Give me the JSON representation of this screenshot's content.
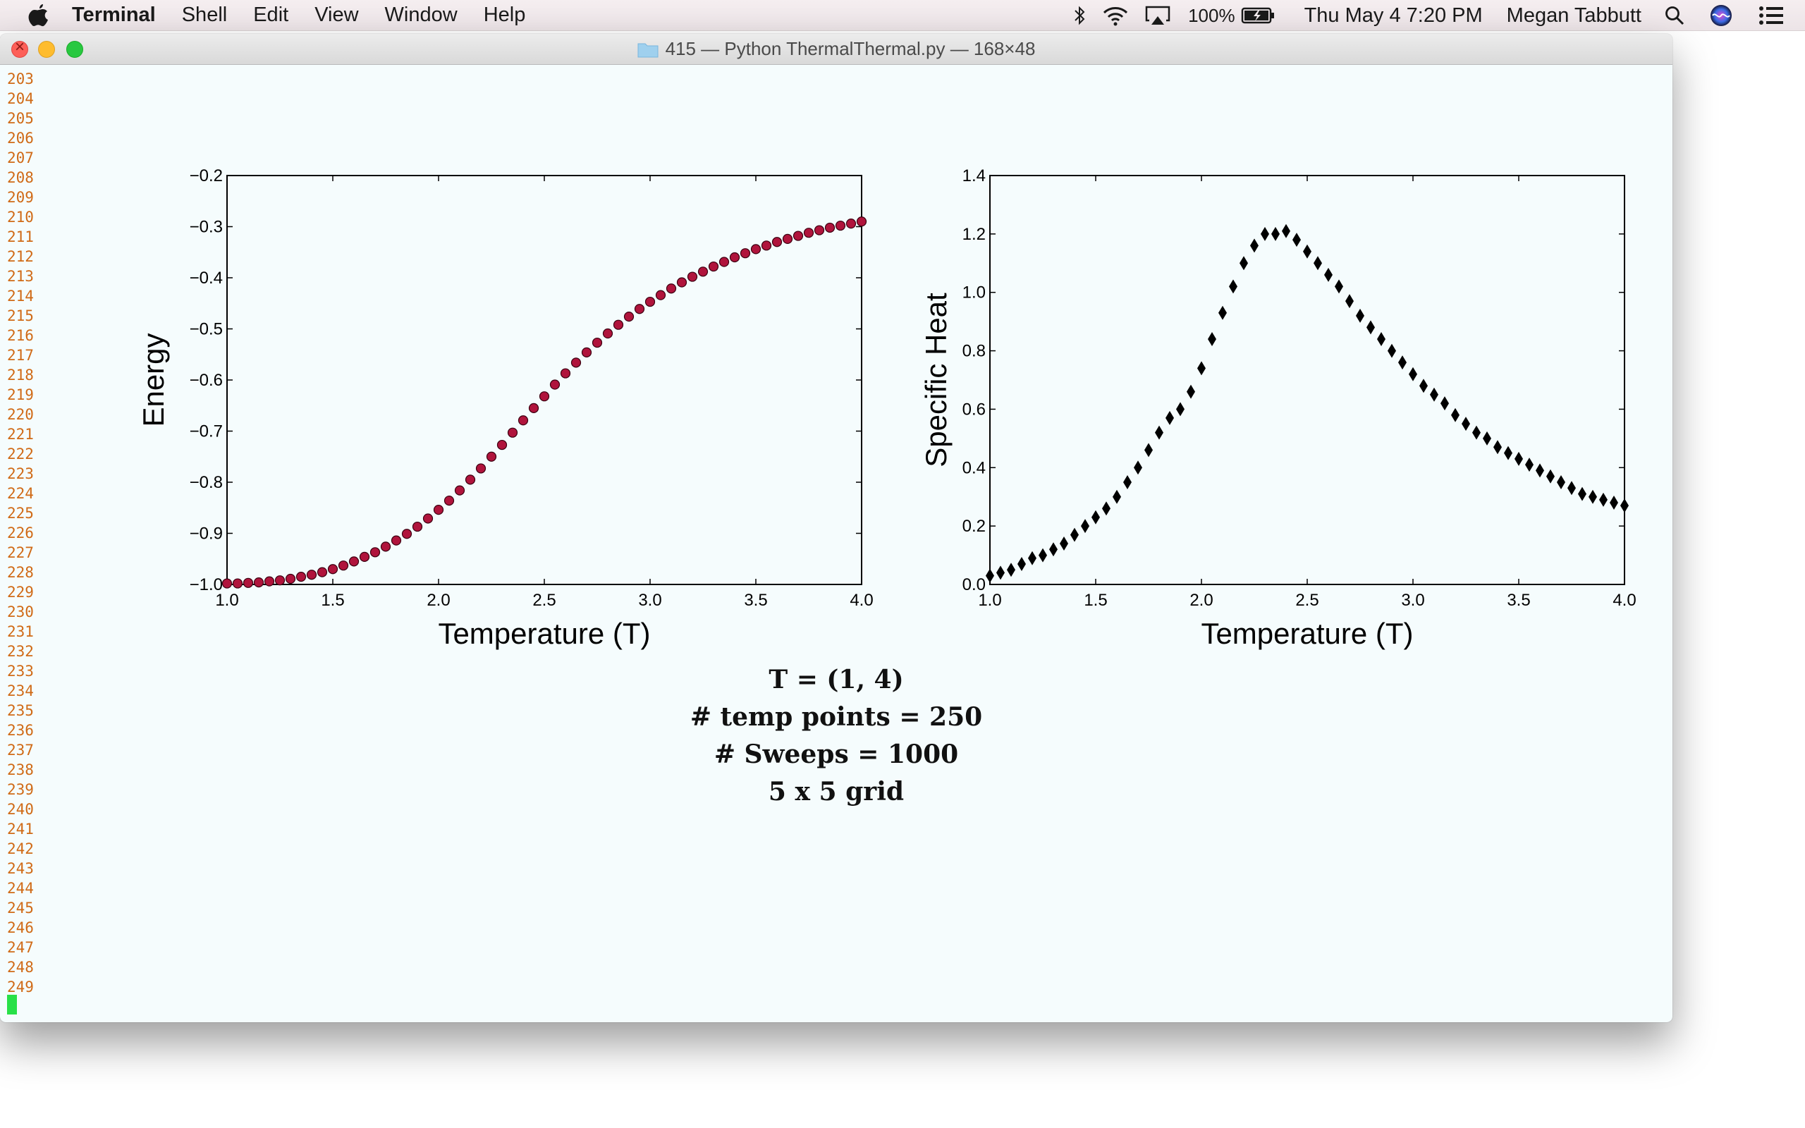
{
  "menubar": {
    "app_name": "Terminal",
    "items": [
      "Shell",
      "Edit",
      "View",
      "Window",
      "Help"
    ],
    "battery": "100%",
    "datetime": "Thu May 4  7:20 PM",
    "user": "Megan Tabbutt",
    "icons": [
      "apple-icon",
      "bluetooth-icon",
      "wifi-icon",
      "airplay-icon",
      "battery-icon",
      "search-icon",
      "siri-icon",
      "notification-center-icon"
    ]
  },
  "window": {
    "title": "415 — Python ThermalThermal.py — 168×48"
  },
  "terminal": {
    "line_numbers": [
      "203",
      "204",
      "205",
      "206",
      "207",
      "208",
      "209",
      "210",
      "211",
      "212",
      "213",
      "214",
      "215",
      "216",
      "217",
      "218",
      "219",
      "220",
      "221",
      "222",
      "223",
      "224",
      "225",
      "226",
      "227",
      "228",
      "229",
      "230",
      "231",
      "232",
      "233",
      "234",
      "235",
      "236",
      "237",
      "238",
      "239",
      "240",
      "241",
      "242",
      "243",
      "244",
      "245",
      "246",
      "247",
      "248",
      "249"
    ]
  },
  "caption": {
    "line1": "T = (1, 4)",
    "line2": "#  temp points = 250",
    "line3": "#  Sweeps = 1000",
    "line4": "5 x 5 grid"
  },
  "chart_data": [
    {
      "type": "scatter",
      "xlabel": "Temperature (T)",
      "ylabel": "Energy",
      "xlim": [
        1.0,
        4.0
      ],
      "ylim": [
        -1.0,
        -0.2
      ],
      "xticks": [
        "1.0",
        "1.5",
        "2.0",
        "2.5",
        "3.0",
        "3.5",
        "4.0"
      ],
      "yticks": [
        "−1.0",
        "−0.9",
        "−0.8",
        "−0.7",
        "−0.6",
        "−0.5",
        "−0.4",
        "−0.3",
        "−0.2"
      ],
      "marker": "circle",
      "color": "#b0143c",
      "x": [
        1.0,
        1.05,
        1.1,
        1.15,
        1.2,
        1.25,
        1.3,
        1.35,
        1.4,
        1.45,
        1.5,
        1.55,
        1.6,
        1.65,
        1.7,
        1.75,
        1.8,
        1.85,
        1.9,
        1.95,
        2.0,
        2.05,
        2.1,
        2.15,
        2.2,
        2.25,
        2.3,
        2.35,
        2.4,
        2.45,
        2.5,
        2.55,
        2.6,
        2.65,
        2.7,
        2.75,
        2.8,
        2.85,
        2.9,
        2.95,
        3.0,
        3.05,
        3.1,
        3.15,
        3.2,
        3.25,
        3.3,
        3.35,
        3.4,
        3.45,
        3.5,
        3.55,
        3.6,
        3.65,
        3.7,
        3.75,
        3.8,
        3.85,
        3.9,
        3.95,
        4.0
      ],
      "y": [
        -0.998,
        -0.998,
        -0.997,
        -0.996,
        -0.994,
        -0.992,
        -0.989,
        -0.985,
        -0.981,
        -0.976,
        -0.97,
        -0.963,
        -0.955,
        -0.946,
        -0.937,
        -0.926,
        -0.914,
        -0.901,
        -0.887,
        -0.871,
        -0.854,
        -0.836,
        -0.816,
        -0.795,
        -0.773,
        -0.75,
        -0.727,
        -0.703,
        -0.679,
        -0.655,
        -0.632,
        -0.609,
        -0.587,
        -0.566,
        -0.546,
        -0.527,
        -0.509,
        -0.492,
        -0.476,
        -0.461,
        -0.447,
        -0.434,
        -0.421,
        -0.409,
        -0.398,
        -0.388,
        -0.378,
        -0.369,
        -0.36,
        -0.352,
        -0.344,
        -0.337,
        -0.33,
        -0.324,
        -0.318,
        -0.312,
        -0.307,
        -0.302,
        -0.298,
        -0.294,
        -0.29
      ]
    },
    {
      "type": "scatter",
      "xlabel": "Temperature (T)",
      "ylabel": "Specific Heat",
      "xlim": [
        1.0,
        4.0
      ],
      "ylim": [
        0.0,
        1.4
      ],
      "xticks": [
        "1.0",
        "1.5",
        "2.0",
        "2.5",
        "3.0",
        "3.5",
        "4.0"
      ],
      "yticks": [
        "0.0",
        "0.2",
        "0.4",
        "0.6",
        "0.8",
        "1.0",
        "1.2",
        "1.4"
      ],
      "marker": "diamond",
      "color": "#000000",
      "x": [
        1.0,
        1.05,
        1.1,
        1.15,
        1.2,
        1.25,
        1.3,
        1.35,
        1.4,
        1.45,
        1.5,
        1.55,
        1.6,
        1.65,
        1.7,
        1.75,
        1.8,
        1.85,
        1.9,
        1.95,
        2.0,
        2.05,
        2.1,
        2.15,
        2.2,
        2.25,
        2.3,
        2.35,
        2.4,
        2.45,
        2.5,
        2.55,
        2.6,
        2.65,
        2.7,
        2.75,
        2.8,
        2.85,
        2.9,
        2.95,
        3.0,
        3.05,
        3.1,
        3.15,
        3.2,
        3.25,
        3.3,
        3.35,
        3.4,
        3.45,
        3.5,
        3.55,
        3.6,
        3.65,
        3.7,
        3.75,
        3.8,
        3.85,
        3.9,
        3.95,
        4.0
      ],
      "y": [
        0.03,
        0.04,
        0.05,
        0.07,
        0.09,
        0.1,
        0.12,
        0.14,
        0.17,
        0.2,
        0.23,
        0.26,
        0.3,
        0.35,
        0.4,
        0.46,
        0.52,
        0.57,
        0.6,
        0.66,
        0.74,
        0.84,
        0.93,
        1.02,
        1.1,
        1.16,
        1.2,
        1.2,
        1.21,
        1.18,
        1.14,
        1.1,
        1.06,
        1.02,
        0.97,
        0.92,
        0.88,
        0.84,
        0.8,
        0.76,
        0.72,
        0.68,
        0.65,
        0.62,
        0.58,
        0.55,
        0.52,
        0.5,
        0.47,
        0.45,
        0.43,
        0.41,
        0.39,
        0.37,
        0.35,
        0.33,
        0.31,
        0.3,
        0.29,
        0.28,
        0.27
      ]
    }
  ]
}
